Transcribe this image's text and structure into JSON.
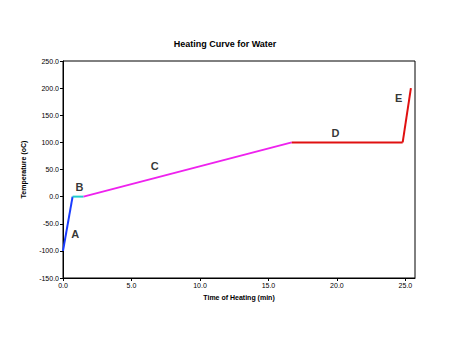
{
  "chart_data": {
    "type": "line",
    "title": "Heating Curve for Water",
    "x_label": "Time of Heating (min)",
    "y_label": "Temperature (oC)",
    "xlim": [
      0,
      25.7
    ],
    "ylim": [
      -150,
      250
    ],
    "xticks": [
      {
        "value": 0,
        "label": "0.0"
      },
      {
        "value": 5,
        "label": "5.0"
      },
      {
        "value": 10,
        "label": "10.0"
      },
      {
        "value": 15,
        "label": "15.0"
      },
      {
        "value": 20,
        "label": "20.0"
      },
      {
        "value": 25,
        "label": "25.0"
      }
    ],
    "yticks": [
      {
        "value": -150,
        "label": "-150.0"
      },
      {
        "value": -100,
        "label": "-100.0"
      },
      {
        "value": -50,
        "label": "-50.0"
      },
      {
        "value": 0,
        "label": "0.0"
      },
      {
        "value": 50,
        "label": "50.0"
      },
      {
        "value": 100,
        "label": "100.0"
      },
      {
        "value": 150,
        "label": "150.0"
      },
      {
        "value": 200,
        "label": "200.0"
      },
      {
        "value": 250,
        "label": "250.0"
      }
    ],
    "grid": false,
    "series": [
      {
        "color": "#1a3cff",
        "x": [
          0,
          0.7
        ],
        "values": [
          -100,
          0
        ]
      },
      {
        "color": "#22cccc",
        "x": [
          0.7,
          1.5
        ],
        "values": [
          0,
          0
        ]
      },
      {
        "color": "#ee22ee",
        "x": [
          1.5,
          16.7
        ],
        "values": [
          0,
          100
        ]
      },
      {
        "color": "#e01010",
        "x": [
          16.7,
          24.8
        ],
        "values": [
          100,
          100
        ]
      },
      {
        "color": "#e01010",
        "x": [
          24.8,
          25.4
        ],
        "values": [
          100,
          200
        ]
      }
    ],
    "annotations": [
      {
        "text": "A",
        "x": 0.9,
        "y": -68
      },
      {
        "text": "B",
        "x": 1.2,
        "y": 17
      },
      {
        "text": "C",
        "x": 6.7,
        "y": 57
      },
      {
        "text": "D",
        "x": 19.9,
        "y": 117
      },
      {
        "text": "E",
        "x": 24.5,
        "y": 181
      }
    ]
  }
}
